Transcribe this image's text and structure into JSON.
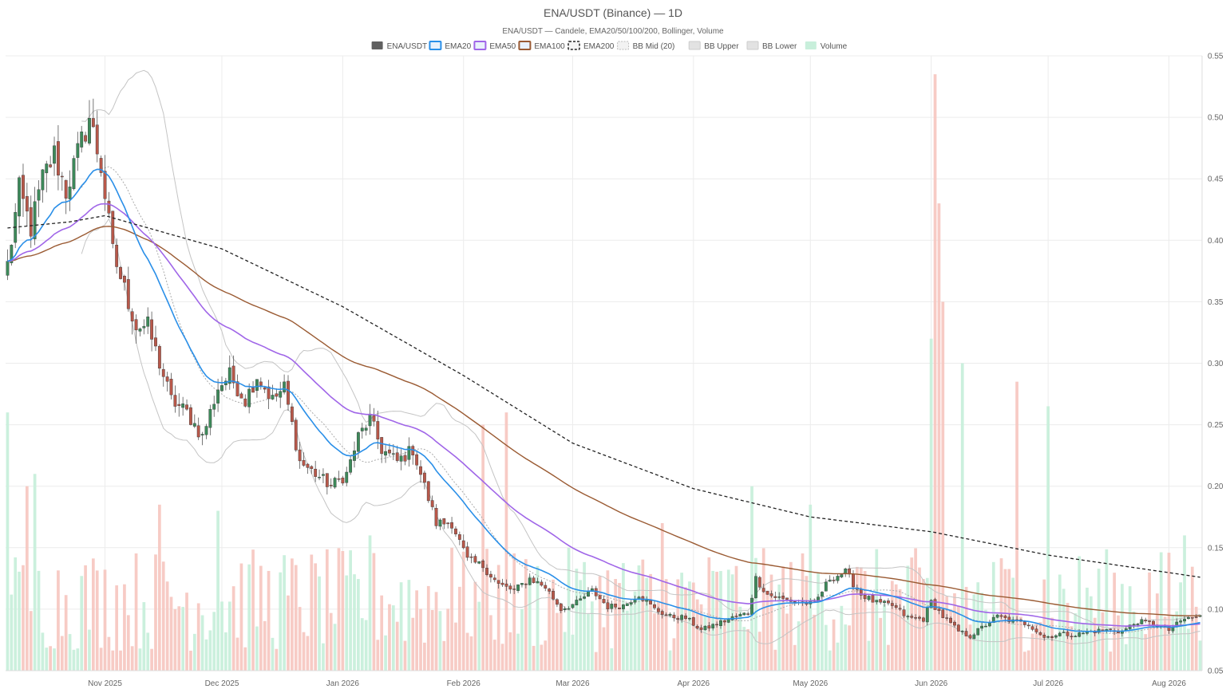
{
  "chart_data": {
    "type": "candlestick",
    "title": "ENA/USDT (Binance) — 1D",
    "subtitle": "ENA/USDT — Candele, EMA20/50/100/200, Bollinger, Volume",
    "legend": [
      {
        "label": "ENA/USDT",
        "color": "#606060",
        "style": "solid"
      },
      {
        "label": "EMA20",
        "color": "#2a8fe8",
        "style": "line"
      },
      {
        "label": "EMA50",
        "color": "#a066e8",
        "style": "line"
      },
      {
        "label": "EMA100",
        "color": "#9a5a32",
        "style": "line"
      },
      {
        "label": "EMA200",
        "color": "#222222",
        "style": "dashed"
      },
      {
        "label": "BB Mid (20)",
        "color": "#bbbbbb",
        "style": "dotted"
      },
      {
        "label": "BB Upper",
        "color": "#cccccc",
        "style": "band"
      },
      {
        "label": "BB Lower",
        "color": "#cccccc",
        "style": "band"
      },
      {
        "label": "Volume",
        "color": "#c8efdb",
        "style": "fill"
      }
    ],
    "legend_position": "top-center",
    "x_start": "2025-10-07",
    "x_end": "2026-08-09",
    "x_ticks": [
      {
        "label": "Nov 2025",
        "date": "2025-11-01"
      },
      {
        "label": "Dec 2025",
        "date": "2025-12-01"
      },
      {
        "label": "Jan 2026",
        "date": "2026-01-01"
      },
      {
        "label": "Feb 2026",
        "date": "2026-02-01"
      },
      {
        "label": "Mar 2026",
        "date": "2026-03-01"
      },
      {
        "label": "Apr 2026",
        "date": "2026-04-01"
      },
      {
        "label": "May 2026",
        "date": "2026-05-01"
      },
      {
        "label": "Jun 2026",
        "date": "2026-06-01"
      },
      {
        "label": "Jul 2026",
        "date": "2026-07-01"
      },
      {
        "label": "Aug 2026",
        "date": "2026-08-01"
      }
    ],
    "y_ticks": [
      0.05,
      0.1,
      0.15,
      0.2,
      0.25,
      0.3,
      0.35,
      0.4,
      0.45,
      0.5,
      0.55
    ],
    "y_tick_labels": [
      "0.05",
      "0.10",
      "0.15",
      "0.20",
      "0.25",
      "0.30",
      "0.35",
      "0.40",
      "0.45",
      "0.50",
      "0.55"
    ],
    "ylim": [
      0.05,
      0.55
    ],
    "y_axis_side": "right",
    "grid": true,
    "colors": {
      "up": "#3d8a5a",
      "down": "#b8584a",
      "vol_up": "#c8efdb",
      "vol_down": "#f7c8c2"
    },
    "price_anchors": [
      [
        "2025-10-07",
        0.38
      ],
      [
        "2025-10-10",
        0.44
      ],
      [
        "2025-10-13",
        0.41
      ],
      [
        "2025-10-16",
        0.45
      ],
      [
        "2025-10-19",
        0.47
      ],
      [
        "2025-10-22",
        0.44
      ],
      [
        "2025-10-25",
        0.47
      ],
      [
        "2025-10-28",
        0.5
      ],
      [
        "2025-10-31",
        0.46
      ],
      [
        "2025-11-03",
        0.39
      ],
      [
        "2025-11-06",
        0.36
      ],
      [
        "2025-11-09",
        0.33
      ],
      [
        "2025-11-12",
        0.33
      ],
      [
        "2025-11-15",
        0.3
      ],
      [
        "2025-11-18",
        0.27
      ],
      [
        "2025-11-22",
        0.26
      ],
      [
        "2025-11-26",
        0.24
      ],
      [
        "2025-11-30",
        0.28
      ],
      [
        "2025-12-03",
        0.29
      ],
      [
        "2025-12-07",
        0.27
      ],
      [
        "2025-12-10",
        0.29
      ],
      [
        "2025-12-14",
        0.27
      ],
      [
        "2025-12-17",
        0.28
      ],
      [
        "2025-12-21",
        0.22
      ],
      [
        "2025-12-25",
        0.21
      ],
      [
        "2025-12-29",
        0.2
      ],
      [
        "2026-01-02",
        0.21
      ],
      [
        "2026-01-05",
        0.24
      ],
      [
        "2026-01-08",
        0.255
      ],
      [
        "2026-01-11",
        0.23
      ],
      [
        "2026-01-15",
        0.22
      ],
      [
        "2026-01-19",
        0.23
      ],
      [
        "2026-01-22",
        0.2
      ],
      [
        "2026-01-25",
        0.17
      ],
      [
        "2026-01-29",
        0.17
      ],
      [
        "2026-02-02",
        0.14
      ],
      [
        "2026-02-06",
        0.135
      ],
      [
        "2026-02-10",
        0.12
      ],
      [
        "2026-02-14",
        0.115
      ],
      [
        "2026-02-18",
        0.125
      ],
      [
        "2026-02-22",
        0.118
      ],
      [
        "2026-02-26",
        0.1
      ],
      [
        "2026-03-02",
        0.105
      ],
      [
        "2026-03-06",
        0.115
      ],
      [
        "2026-03-10",
        0.102
      ],
      [
        "2026-03-14",
        0.103
      ],
      [
        "2026-03-18",
        0.112
      ],
      [
        "2026-03-22",
        0.1
      ],
      [
        "2026-03-26",
        0.094
      ],
      [
        "2026-03-30",
        0.093
      ],
      [
        "2026-04-03",
        0.083
      ],
      [
        "2026-04-07",
        0.088
      ],
      [
        "2026-04-11",
        0.093
      ],
      [
        "2026-04-15",
        0.097
      ],
      [
        "2026-04-17",
        0.125
      ],
      [
        "2026-04-20",
        0.112
      ],
      [
        "2026-04-24",
        0.108
      ],
      [
        "2026-04-28",
        0.106
      ],
      [
        "2026-05-02",
        0.104
      ],
      [
        "2026-05-06",
        0.125
      ],
      [
        "2026-05-10",
        0.13
      ],
      [
        "2026-05-14",
        0.112
      ],
      [
        "2026-05-18",
        0.105
      ],
      [
        "2026-05-22",
        0.103
      ],
      [
        "2026-05-26",
        0.093
      ],
      [
        "2026-05-30",
        0.092
      ],
      [
        "2026-06-01",
        0.106
      ],
      [
        "2026-06-04",
        0.094
      ],
      [
        "2026-06-08",
        0.082
      ],
      [
        "2026-06-11",
        0.078
      ],
      [
        "2026-06-14",
        0.085
      ],
      [
        "2026-06-18",
        0.094
      ],
      [
        "2026-06-22",
        0.09
      ],
      [
        "2026-06-26",
        0.088
      ],
      [
        "2026-06-30",
        0.077
      ],
      [
        "2026-07-04",
        0.08
      ],
      [
        "2026-07-08",
        0.079
      ],
      [
        "2026-07-12",
        0.082
      ],
      [
        "2026-07-16",
        0.083
      ],
      [
        "2026-07-20",
        0.082
      ],
      [
        "2026-07-24",
        0.09
      ],
      [
        "2026-07-28",
        0.088
      ],
      [
        "2026-08-01",
        0.083
      ],
      [
        "2026-08-05",
        0.092
      ],
      [
        "2026-08-09",
        0.094
      ]
    ],
    "volume_peaks": [
      [
        "2025-10-07",
        0.26
      ],
      [
        "2025-10-12",
        0.2
      ],
      [
        "2025-10-14",
        0.21
      ],
      [
        "2025-11-15",
        0.185
      ],
      [
        "2025-11-30",
        0.18
      ],
      [
        "2026-01-08",
        0.16
      ],
      [
        "2026-01-29",
        0.15
      ],
      [
        "2026-02-06",
        0.25
      ],
      [
        "2026-02-12",
        0.26
      ],
      [
        "2026-03-24",
        0.17
      ],
      [
        "2026-04-16",
        0.2
      ],
      [
        "2026-05-01",
        0.185
      ],
      [
        "2026-06-01",
        0.32
      ],
      [
        "2026-06-02",
        0.535
      ],
      [
        "2026-06-03",
        0.43
      ],
      [
        "2026-06-04",
        0.35
      ],
      [
        "2026-06-09",
        0.3
      ],
      [
        "2026-06-23",
        0.285
      ],
      [
        "2026-07-01",
        0.265
      ],
      [
        "2026-08-05",
        0.16
      ]
    ],
    "ema200_anchors": [
      [
        "2025-10-07",
        0.41
      ],
      [
        "2025-10-23",
        0.415
      ],
      [
        "2025-11-01",
        0.42
      ],
      [
        "2025-12-01",
        0.393
      ],
      [
        "2026-01-01",
        0.346
      ],
      [
        "2026-02-01",
        0.29
      ],
      [
        "2026-03-01",
        0.235
      ],
      [
        "2026-04-01",
        0.198
      ],
      [
        "2026-05-01",
        0.175
      ],
      [
        "2026-06-01",
        0.163
      ],
      [
        "2026-07-01",
        0.144
      ],
      [
        "2026-08-09",
        0.126
      ]
    ]
  }
}
